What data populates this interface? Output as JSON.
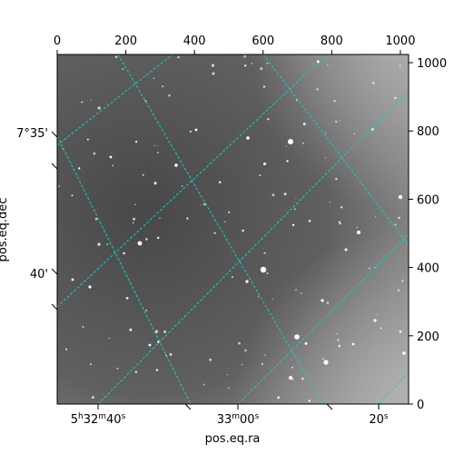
{
  "chart_data": {
    "type": "image",
    "image_description_free": true,
    "pixel_axes": {
      "x_range": [
        0,
        1024
      ],
      "y_range": [
        0,
        1024
      ],
      "top_ticks": [
        0,
        200,
        400,
        600,
        800,
        1000
      ],
      "right_ticks": [
        0,
        200,
        400,
        600,
        800,
        1000
      ]
    },
    "world_axes": {
      "ra_label": "pos.eq.ra",
      "dec_label": "pos.eq.dec",
      "ra_ticks": [
        {
          "h": "5",
          "m": "32",
          "s": "40",
          "kind": "hms"
        },
        {
          "m": "33",
          "s": "00",
          "kind": "ms"
        },
        {
          "s": "20",
          "kind": "s"
        }
      ],
      "dec_ticks": [
        "7°35'",
        "40'"
      ]
    },
    "grid": {
      "on": true,
      "color": "#20c8c8",
      "style": "dashed"
    },
    "colors": {
      "background": "#6a6a6a",
      "stars": "#ffffff",
      "frame": "#000000"
    }
  }
}
